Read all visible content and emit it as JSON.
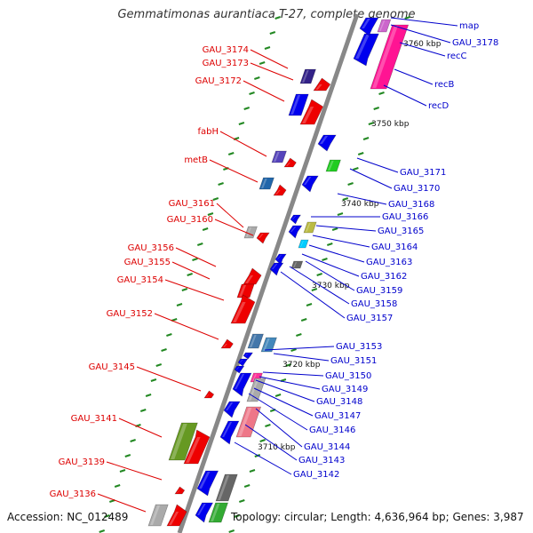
{
  "title": "Gemmatimonas aurantiaca T-27, complete genome",
  "footer": {
    "accession": "Accession: NC_012489",
    "topology": "Topology: circular; Length: 4,636,964 bp; Genes: 3,987"
  },
  "colors": {
    "left_label": "#dd0000",
    "right_label": "#0000cc",
    "backbone": "#888888",
    "tick": "#228822",
    "forward_gene": "#ee0000",
    "reverse_gene": "#0000ee"
  },
  "ruler_labels": [
    "3760 kbp",
    "3750 kbp",
    "3740 kbp",
    "3730 kbp",
    "3720 kbp",
    "3710 kbp"
  ],
  "left_labels": [
    "GAU_3174",
    "GAU_3173",
    "GAU_3172",
    "fabH",
    "metB",
    "GAU_3161",
    "GAU_3160",
    "GAU_3156",
    "GAU_3155",
    "GAU_3154",
    "GAU_3152",
    "GAU_3145",
    "GAU_3141",
    "GAU_3139",
    "GAU_3136"
  ],
  "right_labels": [
    "map",
    "GAU_3178",
    "recC",
    "recB",
    "recD",
    "GAU_3171",
    "GAU_3170",
    "GAU_3168",
    "GAU_3166",
    "GAU_3165",
    "GAU_3164",
    "GAU_3163",
    "GAU_3162",
    "GAU_3159",
    "GAU_3158",
    "GAU_3157",
    "GAU_3153",
    "GAU_3151",
    "GAU_3150",
    "GAU_3149",
    "GAU_3148",
    "GAU_3147",
    "GAU_3146",
    "GAU_3144",
    "GAU_3143",
    "GAU_3142"
  ]
}
